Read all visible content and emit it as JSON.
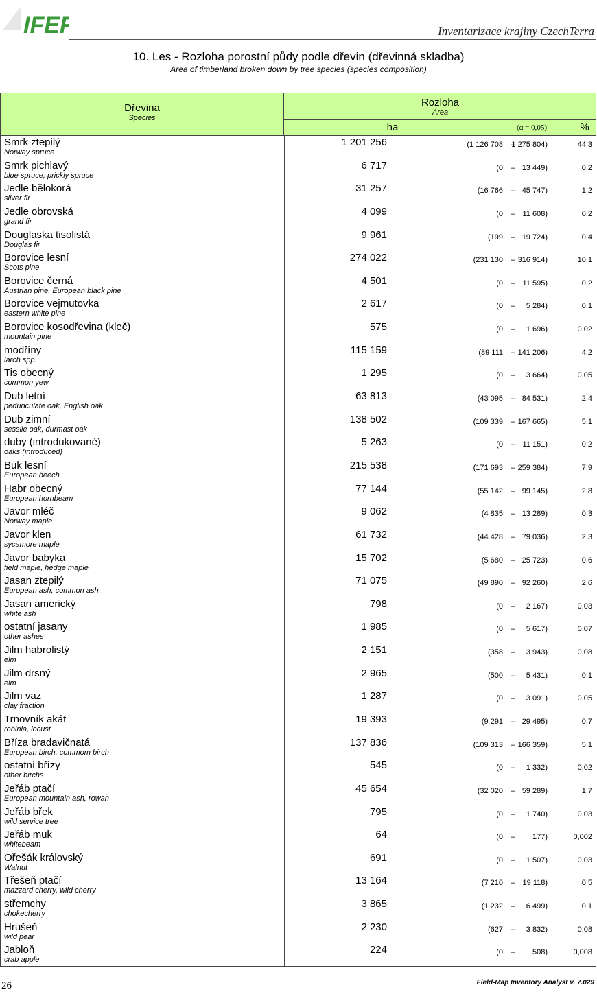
{
  "header": {
    "logo_text": "IFER",
    "right": "Inventarizace krajiny CzechTerra"
  },
  "title": "10. Les - Rozloha porostní půdy podle dřevin (dřevinná skladba)",
  "subtitle": "Area of timberland broken down by tree species (species composition)",
  "table": {
    "head": {
      "species": "Dřevina",
      "species_en": "Species",
      "area": "Rozloha",
      "area_en": "Area",
      "ha": "ha",
      "alpha": "(α = 0,05)",
      "pct": "%",
      "ci_sep": "–"
    },
    "rows": [
      [
        "Smrk ztepilý",
        "Norway spruce",
        "1 201 256",
        "(1 126 708",
        "1 275 804)",
        "44,3"
      ],
      [
        "Smrk pichlavý",
        "blue spruce, prickly spruce",
        "6 717",
        "(0",
        "13 449)",
        "0,2"
      ],
      [
        "Jedle bělokorá",
        "silver fir",
        "31 257",
        "(16 766",
        "45 747)",
        "1,2"
      ],
      [
        "Jedle obrovská",
        "grand fir",
        "4 099",
        "(0",
        "11 608)",
        "0,2"
      ],
      [
        "Douglaska tisolistá",
        "Douglas fir",
        "9 961",
        "(199",
        "19 724)",
        "0,4"
      ],
      [
        "Borovice lesní",
        "Scots pine",
        "274 022",
        "(231 130",
        "316 914)",
        "10,1"
      ],
      [
        "Borovice černá",
        "Austrian pine, European black pine",
        "4 501",
        "(0",
        "11 595)",
        "0,2"
      ],
      [
        "Borovice vejmutovka",
        "eastern white pine",
        "2 617",
        "(0",
        "5 284)",
        "0,1"
      ],
      [
        "Borovice kosodřevina (kleč)",
        "mountain pine",
        "575",
        "(0",
        "1 696)",
        "0,02"
      ],
      [
        "modříny",
        "larch spp.",
        "115 159",
        "(89 111",
        "141 206)",
        "4,2"
      ],
      [
        "Tis obecný",
        "common yew",
        "1 295",
        "(0",
        "3 664)",
        "0,05"
      ],
      [
        "Dub letní",
        "pedunculate oak, English oak",
        "63 813",
        "(43 095",
        "84 531)",
        "2,4"
      ],
      [
        "Dub zimní",
        "sessile oak, durmast oak",
        "138 502",
        "(109 339",
        "167 665)",
        "5,1"
      ],
      [
        "duby (introdukované)",
        "oaks (introduced)",
        "5 263",
        "(0",
        "11 151)",
        "0,2"
      ],
      [
        "Buk lesní",
        "European beech",
        "215 538",
        "(171 693",
        "259 384)",
        "7,9"
      ],
      [
        "Habr obecný",
        "European hornbeam",
        "77 144",
        "(55 142",
        "99 145)",
        "2,8"
      ],
      [
        "Javor mléč",
        "Norway maple",
        "9 062",
        "(4 835",
        "13 289)",
        "0,3"
      ],
      [
        "Javor klen",
        "sycamore maple",
        "61 732",
        "(44 428",
        "79 036)",
        "2,3"
      ],
      [
        "Javor babyka",
        "field maple, hedge maple",
        "15 702",
        "(5 680",
        "25 723)",
        "0,6"
      ],
      [
        "Jasan ztepilý",
        "European ash, common ash",
        "71 075",
        "(49 890",
        "92 260)",
        "2,6"
      ],
      [
        "Jasan americký",
        "white ash",
        "798",
        "(0",
        "2 167)",
        "0,03"
      ],
      [
        "ostatní jasany",
        "other ashes",
        "1 985",
        "(0",
        "5 617)",
        "0,07"
      ],
      [
        "Jilm habrolistý",
        "elm",
        "2 151",
        "(358",
        "3 943)",
        "0,08"
      ],
      [
        "Jilm drsný",
        "elm",
        "2 965",
        "(500",
        "5 431)",
        "0,1"
      ],
      [
        "Jilm vaz",
        "clay fraction",
        "1 287",
        "(0",
        "3 091)",
        "0,05"
      ],
      [
        "Trnovník akát",
        "robinia, locust",
        "19 393",
        "(9 291",
        "29 495)",
        "0,7"
      ],
      [
        "Bříza bradavičnatá",
        "European birch, commom birch",
        "137 836",
        "(109 313",
        "166 359)",
        "5,1"
      ],
      [
        "ostatní břízy",
        "other birchs",
        "545",
        "(0",
        "1 332)",
        "0,02"
      ],
      [
        "Jeřáb ptačí",
        "European mountain ash, rowan",
        "45 654",
        "(32 020",
        "59 289)",
        "1,7"
      ],
      [
        "Jeřáb břek",
        "wild service tree",
        "795",
        "(0",
        "1 740)",
        "0,03"
      ],
      [
        "Jeřáb muk",
        "whitebeam",
        "64",
        "(0",
        "177)",
        "0,002"
      ],
      [
        "Ořešák královský",
        "Walnut",
        "691",
        "(0",
        "1 507)",
        "0,03"
      ],
      [
        "Třešeň ptačí",
        "mazzard cherry, wild cherry",
        "13 164",
        "(7 210",
        "19 118)",
        "0,5"
      ],
      [
        "střemchy",
        "chokecherry",
        "3 865",
        "(1 232",
        "6 499)",
        "0,1"
      ],
      [
        "Hrušeň",
        "wild pear",
        "2 230",
        "(627",
        "3 832)",
        "0,08"
      ],
      [
        "Jabloň",
        "crab apple",
        "224",
        "(0",
        "508)",
        "0,008"
      ]
    ]
  },
  "footer": {
    "page": "26",
    "software": "Field-Map Inventory Analyst v. 7.029"
  }
}
